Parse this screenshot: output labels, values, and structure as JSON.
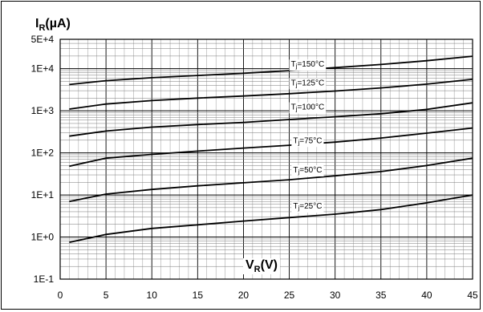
{
  "chart_data": {
    "type": "line",
    "title": "",
    "y_title": {
      "main": "I",
      "sub": "R",
      "unit": "(µA)"
    },
    "x_title": {
      "main": "V",
      "sub": "R",
      "unit": "(V)"
    },
    "yscale": "log",
    "ylim": [
      0.1,
      50000
    ],
    "xlim": [
      0,
      45
    ],
    "x_ticks": [
      0,
      5,
      10,
      15,
      20,
      25,
      30,
      35,
      40,
      45
    ],
    "y_ticks": [
      {
        "value": 50000,
        "label": "5E+4"
      },
      {
        "value": 10000,
        "label": "1E+4"
      },
      {
        "value": 1000,
        "label": "1E+3"
      },
      {
        "value": 100,
        "label": "1E+2"
      },
      {
        "value": 10,
        "label": "1E+1"
      },
      {
        "value": 1,
        "label": "1E+0"
      },
      {
        "value": 0.1,
        "label": "1E-1"
      }
    ],
    "grid": true,
    "series": [
      {
        "label": {
          "pre": "T",
          "sub": "j",
          "post": "=150°C"
        },
        "label_x": 27,
        "label_value": 13000,
        "points": [
          [
            1,
            4200
          ],
          [
            5,
            5200
          ],
          [
            10,
            6100
          ],
          [
            15,
            6900
          ],
          [
            20,
            7800
          ],
          [
            25,
            9000
          ],
          [
            30,
            10600
          ],
          [
            35,
            12600
          ],
          [
            40,
            15500
          ],
          [
            45,
            19800
          ]
        ]
      },
      {
        "label": {
          "pre": "T",
          "sub": "j",
          "post": "=125°C"
        },
        "label_x": 27,
        "label_value": 4700,
        "points": [
          [
            1,
            1100
          ],
          [
            5,
            1450
          ],
          [
            10,
            1750
          ],
          [
            15,
            2000
          ],
          [
            20,
            2250
          ],
          [
            25,
            2550
          ],
          [
            30,
            2950
          ],
          [
            35,
            3500
          ],
          [
            40,
            4300
          ],
          [
            45,
            5600
          ]
        ]
      },
      {
        "label": {
          "pre": "T",
          "sub": "j",
          "post": "=100°C"
        },
        "label_x": 27,
        "label_value": 1250,
        "points": [
          [
            1,
            250
          ],
          [
            5,
            330
          ],
          [
            10,
            410
          ],
          [
            15,
            470
          ],
          [
            20,
            530
          ],
          [
            25,
            620
          ],
          [
            30,
            720
          ],
          [
            35,
            850
          ],
          [
            40,
            1080
          ],
          [
            45,
            1550
          ]
        ]
      },
      {
        "label": {
          "pre": "T",
          "sub": "j",
          "post": "=75°C"
        },
        "label_x": 27,
        "label_value": 200,
        "points": [
          [
            1,
            48
          ],
          [
            5,
            75
          ],
          [
            10,
            92
          ],
          [
            15,
            110
          ],
          [
            20,
            130
          ],
          [
            25,
            152
          ],
          [
            30,
            180
          ],
          [
            35,
            225
          ],
          [
            40,
            295
          ],
          [
            45,
            390
          ]
        ]
      },
      {
        "label": {
          "pre": "T",
          "sub": "j",
          "post": "=50°C"
        },
        "label_x": 27,
        "label_value": 40,
        "points": [
          [
            1,
            7
          ],
          [
            5,
            10.5
          ],
          [
            10,
            13.5
          ],
          [
            15,
            16.5
          ],
          [
            20,
            19.5
          ],
          [
            25,
            23
          ],
          [
            30,
            28.5
          ],
          [
            35,
            36
          ],
          [
            40,
            50
          ],
          [
            45,
            75
          ]
        ]
      },
      {
        "label": {
          "pre": "T",
          "sub": "j",
          "post": "=25°C"
        },
        "label_x": 27,
        "label_value": 5.5,
        "points": [
          [
            1,
            0.75
          ],
          [
            5,
            1.15
          ],
          [
            10,
            1.6
          ],
          [
            15,
            1.95
          ],
          [
            20,
            2.4
          ],
          [
            25,
            2.9
          ],
          [
            30,
            3.5
          ],
          [
            35,
            4.5
          ],
          [
            40,
            6.5
          ],
          [
            45,
            10
          ]
        ]
      }
    ]
  }
}
